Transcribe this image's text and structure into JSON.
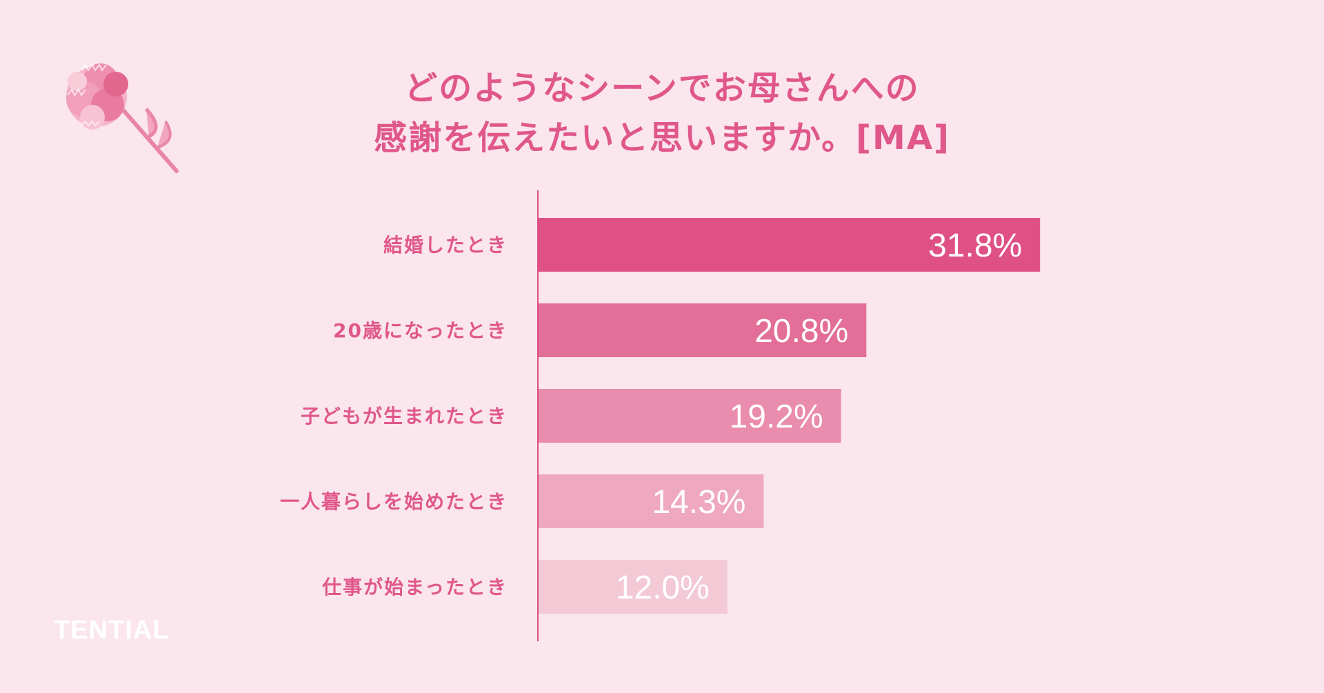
{
  "title_lines": [
    "どのようなシーンでお母さんへの",
    "感謝を伝えたいと思いますか。[MA]"
  ],
  "brand": "TENTIAL",
  "colors": {
    "background": "#fae6ec",
    "text": "#e0578a",
    "axis": "#d94f82",
    "bars": [
      "#df5184",
      "#e36f99",
      "#e98cad",
      "#eea8c0",
      "#f3c9d6"
    ],
    "bar_label": "#ffffff"
  },
  "icons": {
    "decoration": "carnation-icon"
  },
  "chart_data": {
    "type": "bar",
    "orientation": "horizontal",
    "categories": [
      "結婚したとき",
      "20歳になったとき",
      "子どもが生まれたとき",
      "一人暮らしを始めたとき",
      "仕事が始まったとき"
    ],
    "values": [
      31.8,
      20.8,
      19.2,
      14.3,
      12.0
    ],
    "value_labels": [
      "31.8%",
      "20.8%",
      "19.2%",
      "14.3%",
      "12.0%"
    ],
    "unit": "%",
    "xlim": [
      0,
      100
    ],
    "grid": false,
    "legend": "none"
  }
}
